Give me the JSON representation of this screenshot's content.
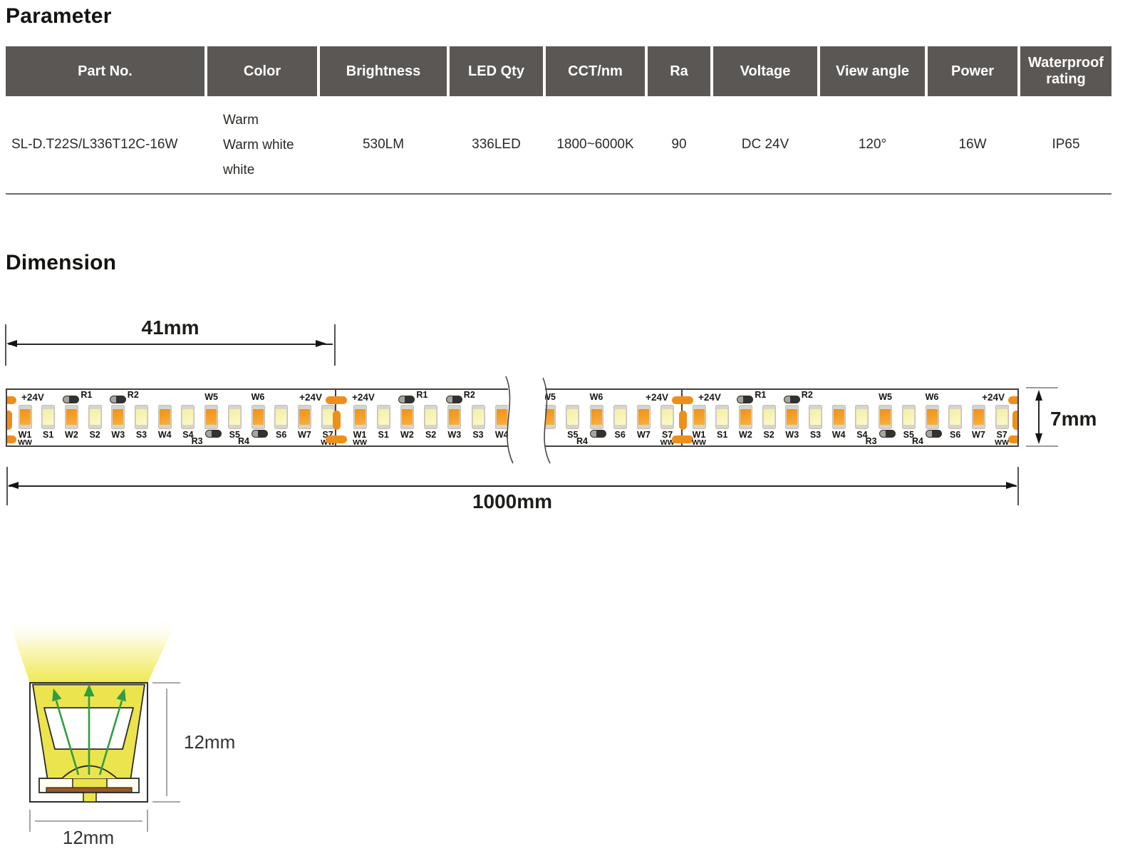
{
  "parameter_section": {
    "title": "Parameter",
    "table": {
      "headers": [
        "Part No.",
        "Color",
        "Brightness",
        "LED Qty",
        "CCT/nm",
        "Ra",
        "Voltage",
        "View angle",
        "Power",
        "Waterproof rating"
      ],
      "row": {
        "part_no": "SL-D.T22S/L336T12C-16W",
        "color_lines": [
          "Warm",
          "Warm white",
          "white"
        ],
        "brightness": "530LM",
        "led_qty": "336LED",
        "cct": "1800~6000K",
        "ra": "90",
        "voltage": "DC 24V",
        "view_angle": "120°",
        "power": "16W",
        "waterproof_rating": "IP65"
      }
    }
  },
  "dimension_section": {
    "title": "Dimension",
    "labels": {
      "cut_length": "41mm",
      "total_length": "1000mm",
      "strip_width": "7mm",
      "profile_height": "12mm",
      "profile_width": "12mm"
    },
    "strip": {
      "voltage_label": "+24V",
      "led_labels": [
        "W1",
        "S1",
        "W2",
        "S2",
        "W3",
        "S3",
        "W4",
        "S4",
        "W5",
        "S5",
        "W6",
        "S6",
        "W7",
        "S7"
      ],
      "ww_sublabel": "WW",
      "resistors_top": [
        "R1",
        "R2"
      ],
      "resistors_bottom": [
        "R3",
        "R4"
      ]
    },
    "colors": {
      "header_gray": "#5b5754",
      "warm_led": "#f09018",
      "warm_led_light": "#f9b13a",
      "white_led": "#f4efa0",
      "white_led_light": "#fcf9cb",
      "pad_orange": "#ee8f1b",
      "body_yellow": "#ece44c",
      "beam_yellow": "#f0e84e",
      "arrow_green": "#2f9e41",
      "pcb_brown": "#9a5a28"
    }
  }
}
